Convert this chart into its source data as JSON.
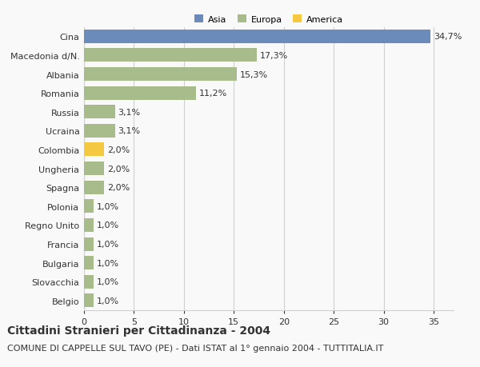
{
  "categories": [
    "Cina",
    "Macedonia d/N.",
    "Albania",
    "Romania",
    "Russia",
    "Ucraina",
    "Colombia",
    "Ungheria",
    "Spagna",
    "Polonia",
    "Regno Unito",
    "Francia",
    "Bulgaria",
    "Slovacchia",
    "Belgio"
  ],
  "values": [
    34.7,
    17.3,
    15.3,
    11.2,
    3.1,
    3.1,
    2.0,
    2.0,
    2.0,
    1.0,
    1.0,
    1.0,
    1.0,
    1.0,
    1.0
  ],
  "labels": [
    "34,7%",
    "17,3%",
    "15,3%",
    "11,2%",
    "3,1%",
    "3,1%",
    "2,0%",
    "2,0%",
    "2,0%",
    "1,0%",
    "1,0%",
    "1,0%",
    "1,0%",
    "1,0%",
    "1,0%"
  ],
  "colors": [
    "#6b8cba",
    "#a8bb8a",
    "#a8bb8a",
    "#a8bb8a",
    "#a8bb8a",
    "#a8bb8a",
    "#f5c842",
    "#a8bb8a",
    "#a8bb8a",
    "#a8bb8a",
    "#a8bb8a",
    "#a8bb8a",
    "#a8bb8a",
    "#a8bb8a",
    "#a8bb8a"
  ],
  "legend_labels": [
    "Asia",
    "Europa",
    "America"
  ],
  "legend_colors": [
    "#6b8cba",
    "#a8bb8a",
    "#f5c842"
  ],
  "title": "Cittadini Stranieri per Cittadinanza - 2004",
  "subtitle": "COMUNE DI CAPPELLE SUL TAVO (PE) - Dati ISTAT al 1° gennaio 2004 - TUTTITALIA.IT",
  "xlim": [
    0,
    37
  ],
  "xticks": [
    0,
    5,
    10,
    15,
    20,
    25,
    30,
    35
  ],
  "background_color": "#f9f9f9",
  "grid_color": "#d0d0d0",
  "text_color": "#333333",
  "title_fontsize": 10,
  "subtitle_fontsize": 8,
  "label_fontsize": 8,
  "tick_fontsize": 8,
  "bar_height": 0.72
}
